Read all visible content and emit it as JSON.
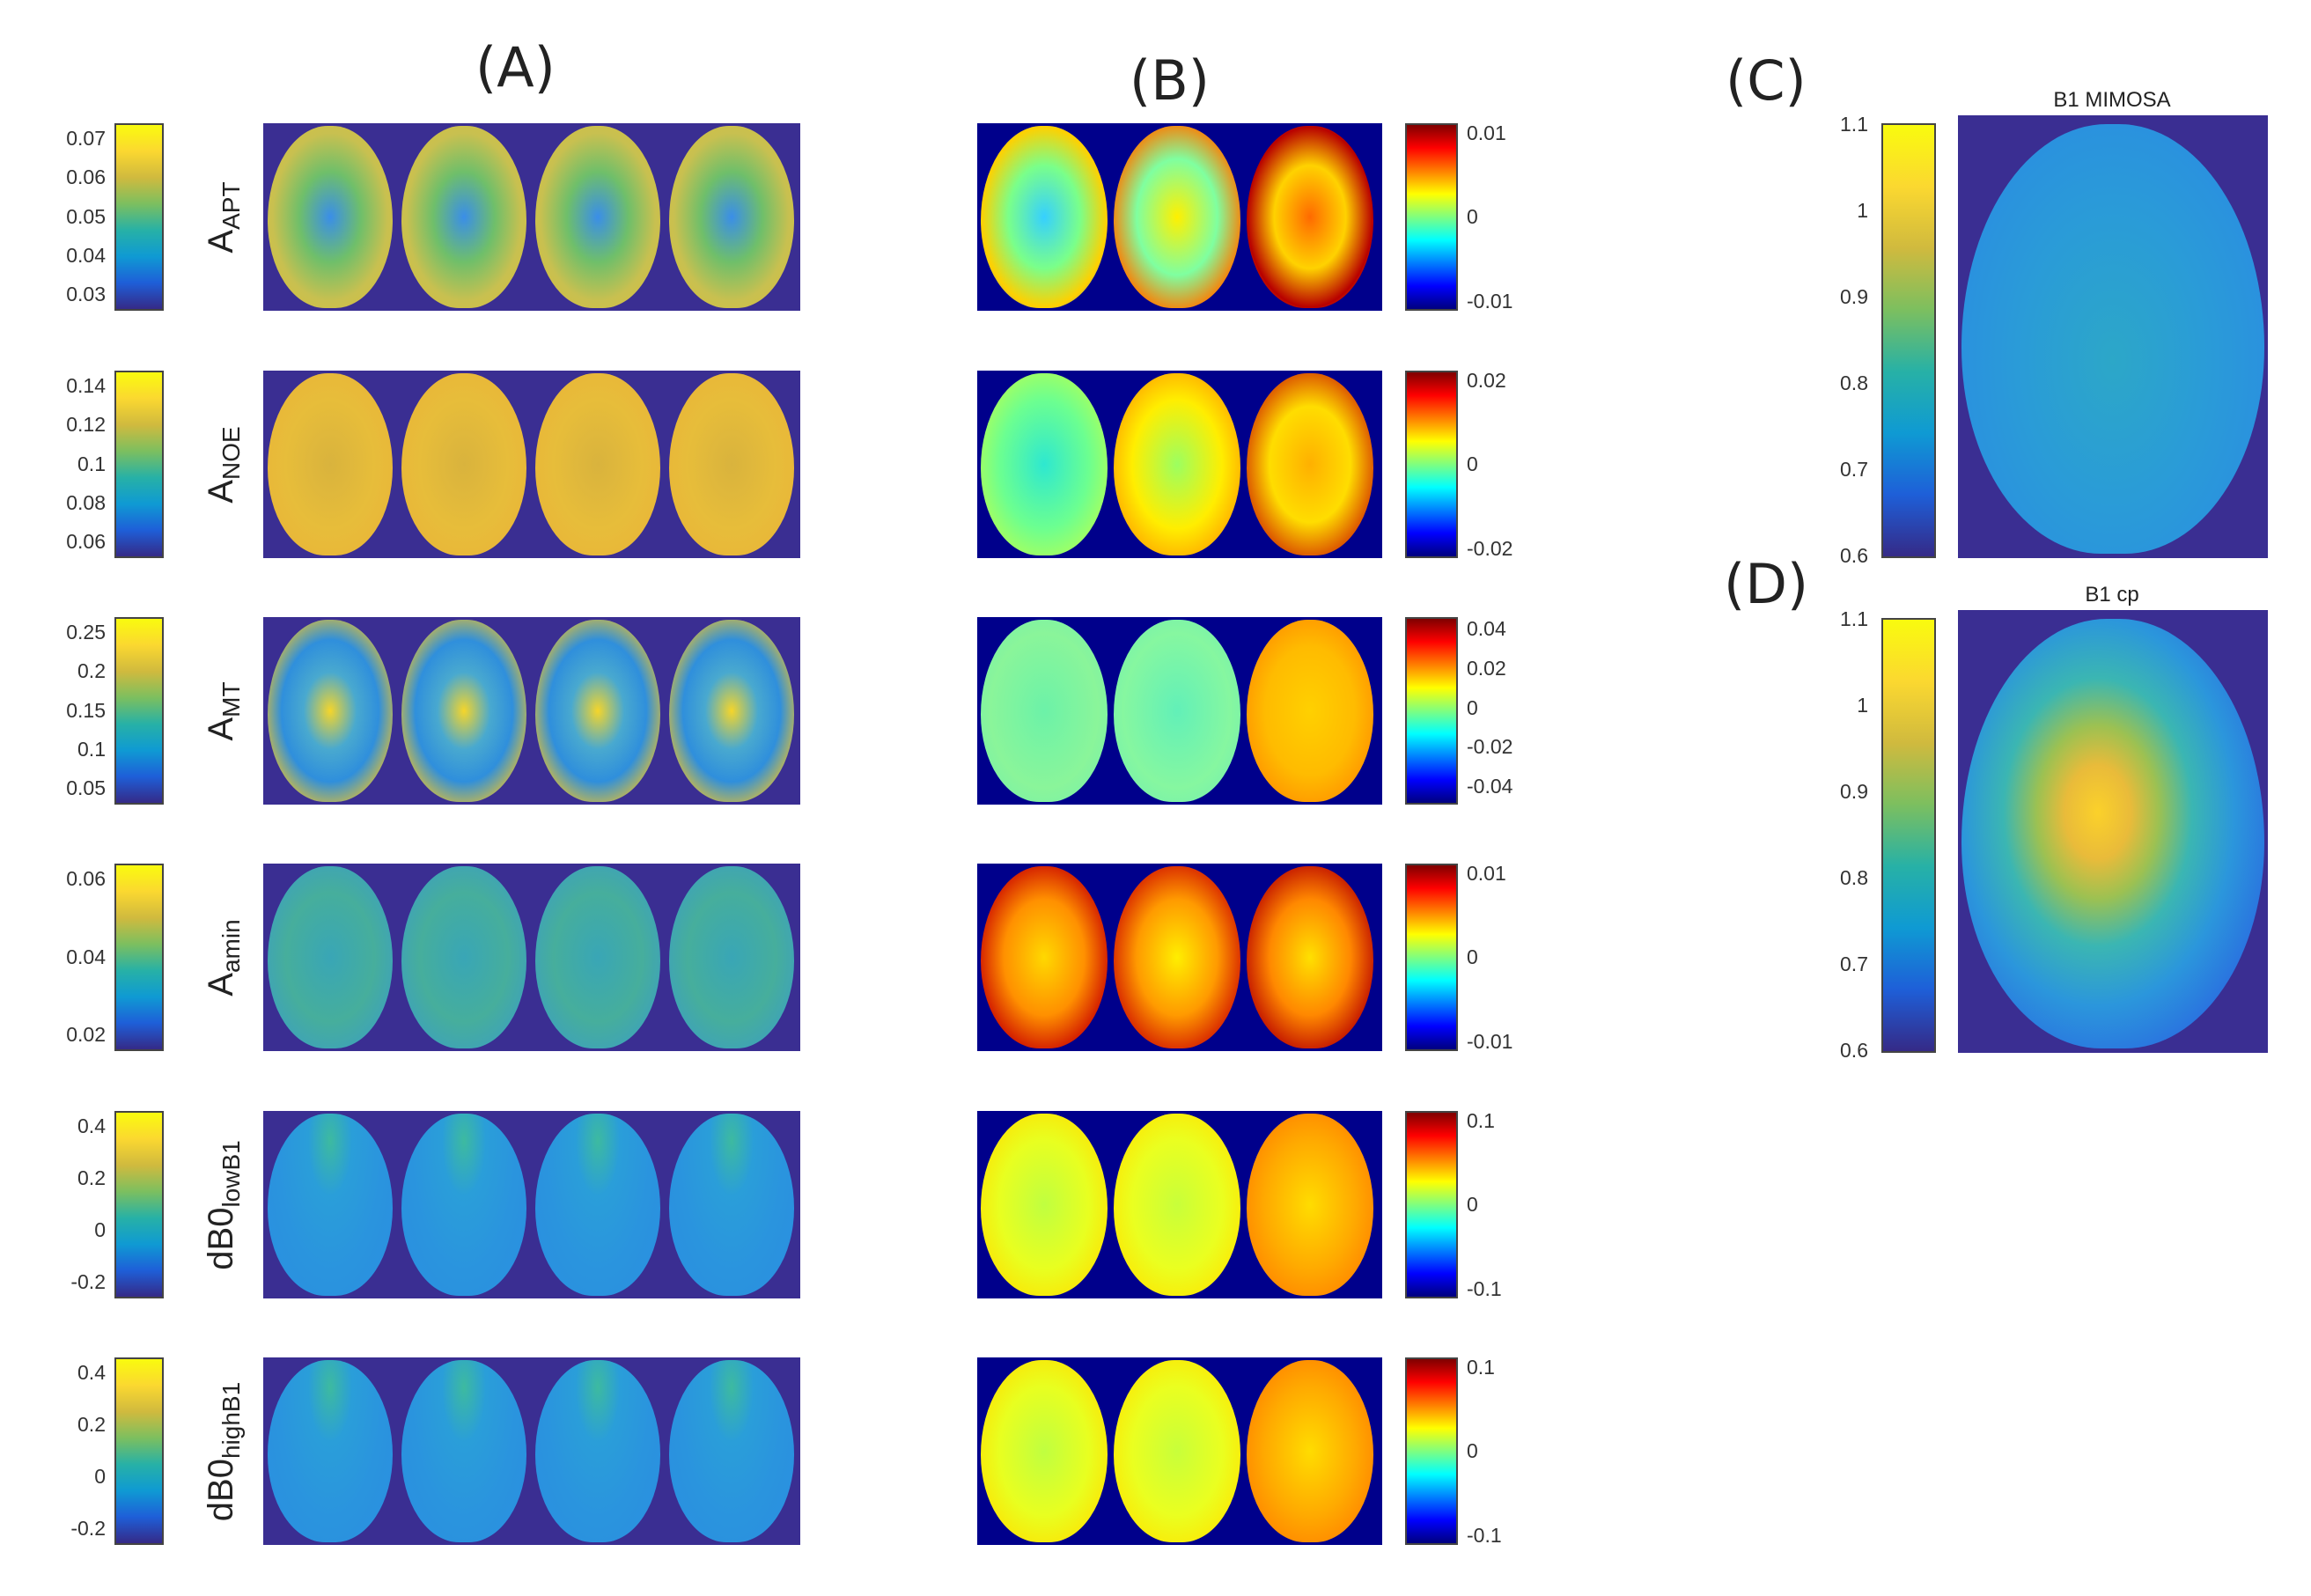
{
  "panels": {
    "a": "(A)",
    "b": "(B)",
    "c": "(C)",
    "d": "(D)"
  },
  "rows": [
    {
      "label_main": "A",
      "label_sub": "APT",
      "a_ticks": [
        "0.07",
        "0.06",
        "0.05",
        "0.04",
        "0.03"
      ],
      "b_ticks": [
        "0.01",
        "0",
        "-0.01"
      ]
    },
    {
      "label_main": "A",
      "label_sub": "NOE",
      "a_ticks": [
        "0.14",
        "0.12",
        "0.1",
        "0.08",
        "0.06"
      ],
      "b_ticks": [
        "0.02",
        "0",
        "-0.02"
      ]
    },
    {
      "label_main": "A",
      "label_sub": "MT",
      "a_ticks": [
        "0.25",
        "0.2",
        "0.15",
        "0.1",
        "0.05"
      ],
      "b_ticks": [
        "0.04",
        "0.02",
        "0",
        "-0.02",
        "-0.04"
      ]
    },
    {
      "label_main": "A",
      "label_sub": "amin",
      "a_ticks": [
        "0.06",
        "0.04",
        "0.02"
      ],
      "b_ticks": [
        "0.01",
        "0",
        "-0.01"
      ]
    },
    {
      "label_main": "dB0",
      "label_sub": "lowB1",
      "a_ticks": [
        "0.4",
        "0.2",
        "0",
        "-0.2"
      ],
      "b_ticks": [
        "0.1",
        "0",
        "-0.1"
      ]
    },
    {
      "label_main": "dB0",
      "label_sub": "highB1",
      "a_ticks": [
        "0.4",
        "0.2",
        "0",
        "-0.2"
      ],
      "b_ticks": [
        "0.1",
        "0",
        "-0.1"
      ]
    }
  ],
  "c_panel": {
    "title": "B1 MIMOSA",
    "ticks": [
      "1.1",
      "1",
      "0.9",
      "0.8",
      "0.7",
      "0.6"
    ]
  },
  "d_panel": {
    "title": "B1 cp",
    "ticks": [
      "1.1",
      "1",
      "0.9",
      "0.8",
      "0.7",
      "0.6"
    ]
  }
}
